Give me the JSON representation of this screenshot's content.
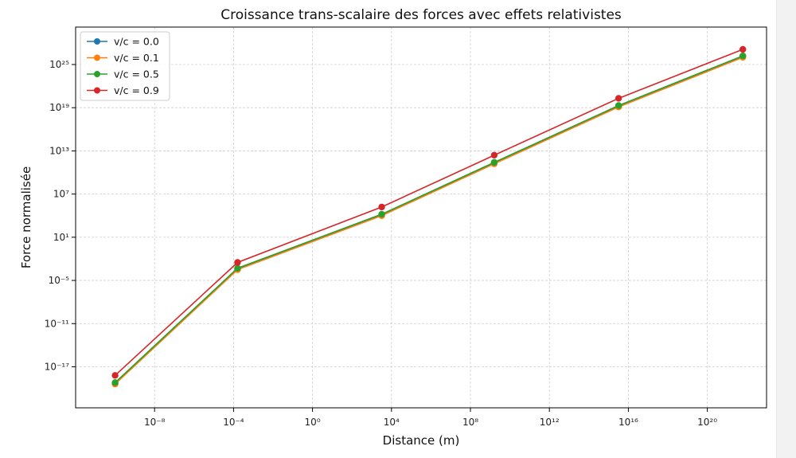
{
  "chart_data": {
    "type": "line",
    "title": "Croissance trans-scalaire des forces avec effets relativistes",
    "xlabel": "Distance (m)",
    "ylabel": "Force normalisée",
    "x_scale": "log",
    "y_scale": "log",
    "x_log_range": [
      -12,
      23
    ],
    "y_log_range": [
      -22.7,
      30.2
    ],
    "x_ticks": [
      {
        "exp": -8,
        "label": "10⁻⁸"
      },
      {
        "exp": -4,
        "label": "10⁻⁴"
      },
      {
        "exp": 0,
        "label": "10⁰"
      },
      {
        "exp": 4,
        "label": "10⁴"
      },
      {
        "exp": 8,
        "label": "10⁸"
      },
      {
        "exp": 12,
        "label": "10¹²"
      },
      {
        "exp": 16,
        "label": "10¹⁶"
      },
      {
        "exp": 20,
        "label": "10²⁰"
      }
    ],
    "y_ticks": [
      {
        "exp": -17,
        "label": "10⁻¹⁷"
      },
      {
        "exp": -11,
        "label": "10⁻¹¹"
      },
      {
        "exp": -5,
        "label": "10⁻⁵"
      },
      {
        "exp": 1,
        "label": "10¹"
      },
      {
        "exp": 7,
        "label": "10⁷"
      },
      {
        "exp": 13,
        "label": "10¹³"
      },
      {
        "exp": 19,
        "label": "10¹⁹"
      },
      {
        "exp": 25,
        "label": "10²⁵"
      }
    ],
    "grid": true,
    "legend_position": "top-left",
    "x": [
      "1e-10",
      "1.6e-4",
      "3.2e3",
      "1.6e9",
      "3.2e15",
      "6.3e21"
    ],
    "series": [
      {
        "name": "v/c = 0.0",
        "color": "#1f77b4",
        "log_values": [
          -19.3,
          -3.4,
          4.1,
          11.3,
          19.2,
          26.1
        ]
      },
      {
        "name": "v/c = 0.1",
        "color": "#ff7f0e",
        "log_values": [
          -19.4,
          -3.5,
          4.0,
          11.2,
          19.1,
          26.0
        ]
      },
      {
        "name": "v/c = 0.5",
        "color": "#2ca02c",
        "log_values": [
          -19.2,
          -3.3,
          4.2,
          11.4,
          19.3,
          26.2
        ]
      },
      {
        "name": "v/c = 0.9",
        "color": "#d62728",
        "log_values": [
          -18.2,
          -2.5,
          5.2,
          12.4,
          20.3,
          27.1
        ]
      }
    ]
  }
}
